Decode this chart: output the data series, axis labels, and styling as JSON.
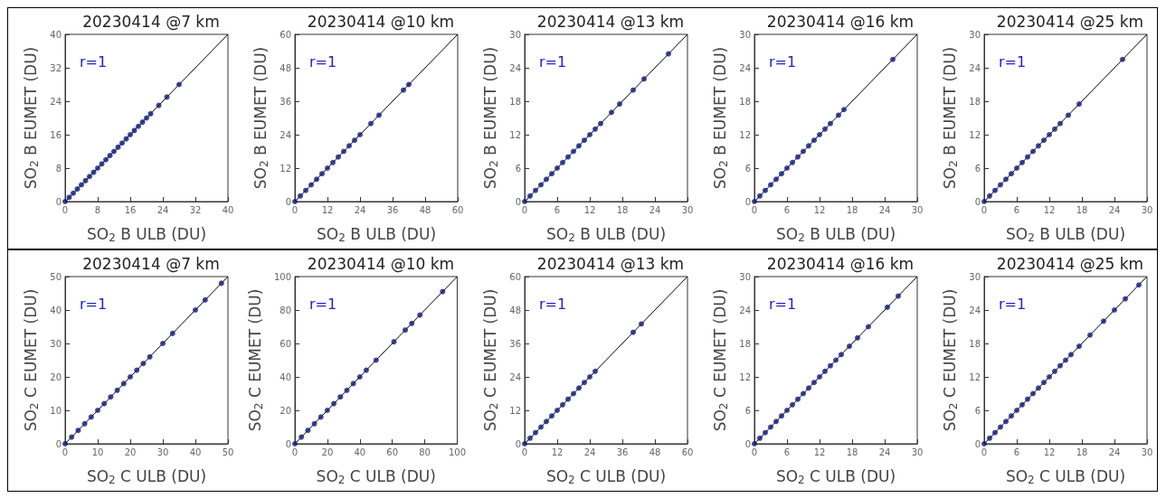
{
  "chart_data": [
    {
      "type": "scatter",
      "title": "20230414 @7 km",
      "xlabel": "SO$_{2}$ B ULB (DU)",
      "ylabel": "SO$_{2}$ B EUMET (DU)",
      "xlim": [
        0,
        40
      ],
      "ylim": [
        0,
        40
      ],
      "xticks": [
        0,
        8,
        16,
        24,
        32,
        40
      ],
      "yticks": [
        0,
        8,
        16,
        24,
        32,
        40
      ],
      "annotations": [
        "r=1"
      ],
      "marker": "circle",
      "series": [
        {
          "color": "#0d1a78",
          "x": [
            0,
            1,
            2,
            3,
            4,
            5,
            6,
            7,
            8,
            9,
            10,
            11,
            12,
            13,
            14,
            15,
            16,
            17,
            18,
            19,
            20,
            21,
            23,
            25,
            28
          ],
          "values": [
            0,
            1,
            2,
            3,
            4,
            5,
            6,
            7,
            8,
            9,
            10,
            11,
            12,
            13,
            14,
            15,
            16,
            17,
            18,
            19,
            20,
            21,
            23,
            25,
            28
          ]
        },
        {
          "type": "line",
          "marker": "none",
          "color": "#000000",
          "x": [
            0,
            40
          ],
          "values": [
            0,
            40
          ]
        }
      ]
    },
    {
      "type": "scatter",
      "title": "20230414 @10 km",
      "xlabel": "SO$_{2}$ B ULB (DU)",
      "ylabel": "SO$_{2}$ B EUMET (DU)",
      "xlim": [
        0,
        60
      ],
      "ylim": [
        0,
        60
      ],
      "xticks": [
        0,
        12,
        24,
        36,
        48,
        60
      ],
      "yticks": [
        0,
        12,
        24,
        36,
        48,
        60
      ],
      "annotations": [
        "r=1"
      ],
      "marker": "circle",
      "series": [
        {
          "color": "#0d1a78",
          "x": [
            0,
            2,
            4,
            6,
            8,
            10,
            12,
            14,
            16,
            18,
            20,
            22,
            24,
            28,
            31,
            40,
            42
          ],
          "values": [
            0,
            2,
            4,
            6,
            8,
            10,
            12,
            14,
            16,
            18,
            20,
            22,
            24,
            28,
            31,
            40,
            42
          ]
        },
        {
          "type": "line",
          "marker": "none",
          "color": "#000000",
          "x": [
            0,
            60
          ],
          "values": [
            0,
            60
          ]
        }
      ]
    },
    {
      "type": "scatter",
      "title": "20230414 @13 km",
      "xlabel": "SO$_{2}$ B ULB (DU)",
      "ylabel": "SO$_{2}$ B EUMET (DU)",
      "xlim": [
        0,
        30
      ],
      "ylim": [
        0,
        30
      ],
      "xticks": [
        0,
        6,
        12,
        18,
        24,
        30
      ],
      "yticks": [
        0,
        6,
        12,
        18,
        24,
        30
      ],
      "annotations": [
        "r=1"
      ],
      "marker": "circle",
      "series": [
        {
          "color": "#0d1a78",
          "x": [
            0,
            1,
            2,
            3,
            4,
            5,
            6,
            7,
            8,
            9,
            10,
            11,
            12,
            13,
            14,
            16,
            17.5,
            20,
            22,
            26.5
          ],
          "values": [
            0,
            1,
            2,
            3,
            4,
            5,
            6,
            7,
            8,
            9,
            10,
            11,
            12,
            13,
            14,
            16,
            17.5,
            20,
            22,
            26.5
          ]
        },
        {
          "type": "line",
          "marker": "none",
          "color": "#000000",
          "x": [
            0,
            30
          ],
          "values": [
            0,
            30
          ]
        }
      ]
    },
    {
      "type": "scatter",
      "title": "20230414 @16 km",
      "xlabel": "SO$_{2}$ B ULB (DU)",
      "ylabel": "SO$_{2}$ B EUMET (DU)",
      "xlim": [
        0,
        30
      ],
      "ylim": [
        0,
        30
      ],
      "xticks": [
        0,
        6,
        12,
        18,
        24,
        30
      ],
      "yticks": [
        0,
        6,
        12,
        18,
        24,
        30
      ],
      "annotations": [
        "r=1"
      ],
      "marker": "circle",
      "series": [
        {
          "color": "#0d1a78",
          "x": [
            0,
            1,
            2,
            3,
            4,
            5,
            6,
            7,
            8,
            9,
            10,
            11,
            12,
            13,
            14,
            15.5,
            16.5,
            25.5
          ],
          "values": [
            0,
            1,
            2,
            3,
            4,
            5,
            6,
            7,
            8,
            9,
            10,
            11,
            12,
            13,
            14,
            15.5,
            16.5,
            25.5
          ]
        },
        {
          "type": "line",
          "marker": "none",
          "color": "#000000",
          "x": [
            0,
            30
          ],
          "values": [
            0,
            30
          ]
        }
      ]
    },
    {
      "type": "scatter",
      "title": "20230414 @25 km",
      "xlabel": "SO$_{2}$ B ULB (DU)",
      "ylabel": "SO$_{2}$ B EUMET (DU)",
      "xlim": [
        0,
        30
      ],
      "ylim": [
        0,
        30
      ],
      "xticks": [
        0,
        6,
        12,
        18,
        24,
        30
      ],
      "yticks": [
        0,
        6,
        12,
        18,
        24,
        30
      ],
      "annotations": [
        "r=1"
      ],
      "marker": "circle",
      "series": [
        {
          "color": "#0d1a78",
          "x": [
            0,
            1,
            2,
            3,
            4,
            5,
            6,
            7,
            8,
            9,
            10,
            11,
            12,
            13,
            14,
            15.5,
            17.5,
            25.5
          ],
          "values": [
            0,
            1,
            2,
            3,
            4,
            5,
            6,
            7,
            8,
            9,
            10,
            11,
            12,
            13,
            14,
            15.5,
            17.5,
            25.5
          ]
        },
        {
          "type": "line",
          "marker": "none",
          "color": "#000000",
          "x": [
            0,
            30
          ],
          "values": [
            0,
            30
          ]
        }
      ]
    },
    {
      "type": "scatter",
      "title": "20230414 @7 km",
      "xlabel": "SO$_{2}$ C ULB (DU)",
      "ylabel": "SO$_{2}$ C EUMET (DU)",
      "xlim": [
        0,
        50
      ],
      "ylim": [
        0,
        50
      ],
      "xticks": [
        0,
        10,
        20,
        30,
        40,
        50
      ],
      "yticks": [
        0,
        10,
        20,
        30,
        40,
        50
      ],
      "annotations": [
        "r=1"
      ],
      "marker": "circle",
      "series": [
        {
          "color": "#0d1a78",
          "x": [
            0,
            2,
            4,
            6,
            8,
            10,
            12,
            14,
            16,
            18,
            20,
            22,
            24,
            26,
            30,
            33,
            40,
            43,
            48
          ],
          "values": [
            0,
            2,
            4,
            6,
            8,
            10,
            12,
            14,
            16,
            18,
            20,
            22,
            24,
            26,
            30,
            33,
            40,
            43,
            48
          ]
        },
        {
          "type": "line",
          "marker": "none",
          "color": "#000000",
          "x": [
            0,
            50
          ],
          "values": [
            0,
            50
          ]
        }
      ]
    },
    {
      "type": "scatter",
      "title": "20230414 @10 km",
      "xlabel": "SO$_{2}$ C ULB (DU)",
      "ylabel": "SO$_{2}$ C EUMET (DU)",
      "xlim": [
        0,
        100
      ],
      "ylim": [
        0,
        100
      ],
      "xticks": [
        0,
        20,
        40,
        60,
        80,
        100
      ],
      "yticks": [
        0,
        20,
        40,
        60,
        80,
        100
      ],
      "annotations": [
        "r=1"
      ],
      "marker": "circle",
      "series": [
        {
          "color": "#0d1a78",
          "x": [
            0,
            4,
            8,
            12,
            16,
            20,
            24,
            28,
            32,
            36,
            40,
            44,
            50,
            61,
            68,
            72,
            77,
            91
          ],
          "values": [
            0,
            4,
            8,
            12,
            16,
            20,
            24,
            28,
            32,
            36,
            40,
            44,
            50,
            61,
            68,
            72,
            77,
            91
          ]
        },
        {
          "type": "line",
          "marker": "none",
          "color": "#000000",
          "x": [
            0,
            100
          ],
          "values": [
            0,
            100
          ]
        }
      ]
    },
    {
      "type": "scatter",
      "title": "20230414 @13 km",
      "xlabel": "SO$_{2}$ C ULB (DU)",
      "ylabel": "SO$_{2}$ C EUMET (DU)",
      "xlim": [
        0,
        60
      ],
      "ylim": [
        0,
        60
      ],
      "xticks": [
        0,
        12,
        24,
        36,
        48,
        60
      ],
      "yticks": [
        0,
        12,
        24,
        36,
        48,
        60
      ],
      "annotations": [
        "r=1"
      ],
      "marker": "circle",
      "series": [
        {
          "color": "#0d1a78",
          "x": [
            0,
            2,
            4,
            6,
            8,
            10,
            12,
            14,
            16,
            18,
            20,
            22,
            24,
            26,
            40,
            43
          ],
          "values": [
            0,
            2,
            4,
            6,
            8,
            10,
            12,
            14,
            16,
            18,
            20,
            22,
            24,
            26,
            40,
            43
          ]
        },
        {
          "type": "line",
          "marker": "none",
          "color": "#000000",
          "x": [
            0,
            60
          ],
          "values": [
            0,
            60
          ]
        }
      ]
    },
    {
      "type": "scatter",
      "title": "20230414 @16 km",
      "xlabel": "SO$_{2}$ C ULB (DU)",
      "ylabel": "SO$_{2}$ C EUMET (DU)",
      "xlim": [
        0,
        30
      ],
      "ylim": [
        0,
        30
      ],
      "xticks": [
        0,
        6,
        12,
        18,
        24,
        30
      ],
      "yticks": [
        0,
        6,
        12,
        18,
        24,
        30
      ],
      "annotations": [
        "r=1"
      ],
      "marker": "circle",
      "series": [
        {
          "color": "#0d1a78",
          "x": [
            0,
            1,
            2,
            3,
            4,
            5,
            6,
            7,
            8,
            9,
            10,
            11,
            12,
            13,
            14,
            15,
            16,
            17.5,
            19,
            21,
            24.5,
            26.5
          ],
          "values": [
            0,
            1,
            2,
            3,
            4,
            5,
            6,
            7,
            8,
            9,
            10,
            11,
            12,
            13,
            14,
            15,
            16,
            17.5,
            19,
            21,
            24.5,
            26.5
          ]
        },
        {
          "type": "line",
          "marker": "none",
          "color": "#000000",
          "x": [
            0,
            30
          ],
          "values": [
            0,
            30
          ]
        }
      ]
    },
    {
      "type": "scatter",
      "title": "20230414 @25 km",
      "xlabel": "SO$_{2}$ C ULB (DU)",
      "ylabel": "SO$_{2}$ C EUMET (DU)",
      "xlim": [
        0,
        30
      ],
      "ylim": [
        0,
        30
      ],
      "xticks": [
        0,
        6,
        12,
        18,
        24,
        30
      ],
      "yticks": [
        0,
        6,
        12,
        18,
        24,
        30
      ],
      "annotations": [
        "r=1"
      ],
      "marker": "circle",
      "series": [
        {
          "color": "#0d1a78",
          "x": [
            0,
            1,
            2,
            3,
            4,
            5,
            6,
            7,
            8,
            9,
            10,
            11,
            12,
            13,
            14,
            15,
            16,
            17.5,
            19.5,
            22,
            24,
            26,
            28.5
          ],
          "values": [
            0,
            1,
            2,
            3,
            4,
            5,
            6,
            7,
            8,
            9,
            10,
            11,
            12,
            13,
            14,
            15,
            16,
            17.5,
            19.5,
            22,
            24,
            26,
            28.5
          ]
        },
        {
          "type": "line",
          "marker": "none",
          "color": "#000000",
          "x": [
            0,
            30
          ],
          "values": [
            0,
            30
          ]
        }
      ]
    }
  ]
}
